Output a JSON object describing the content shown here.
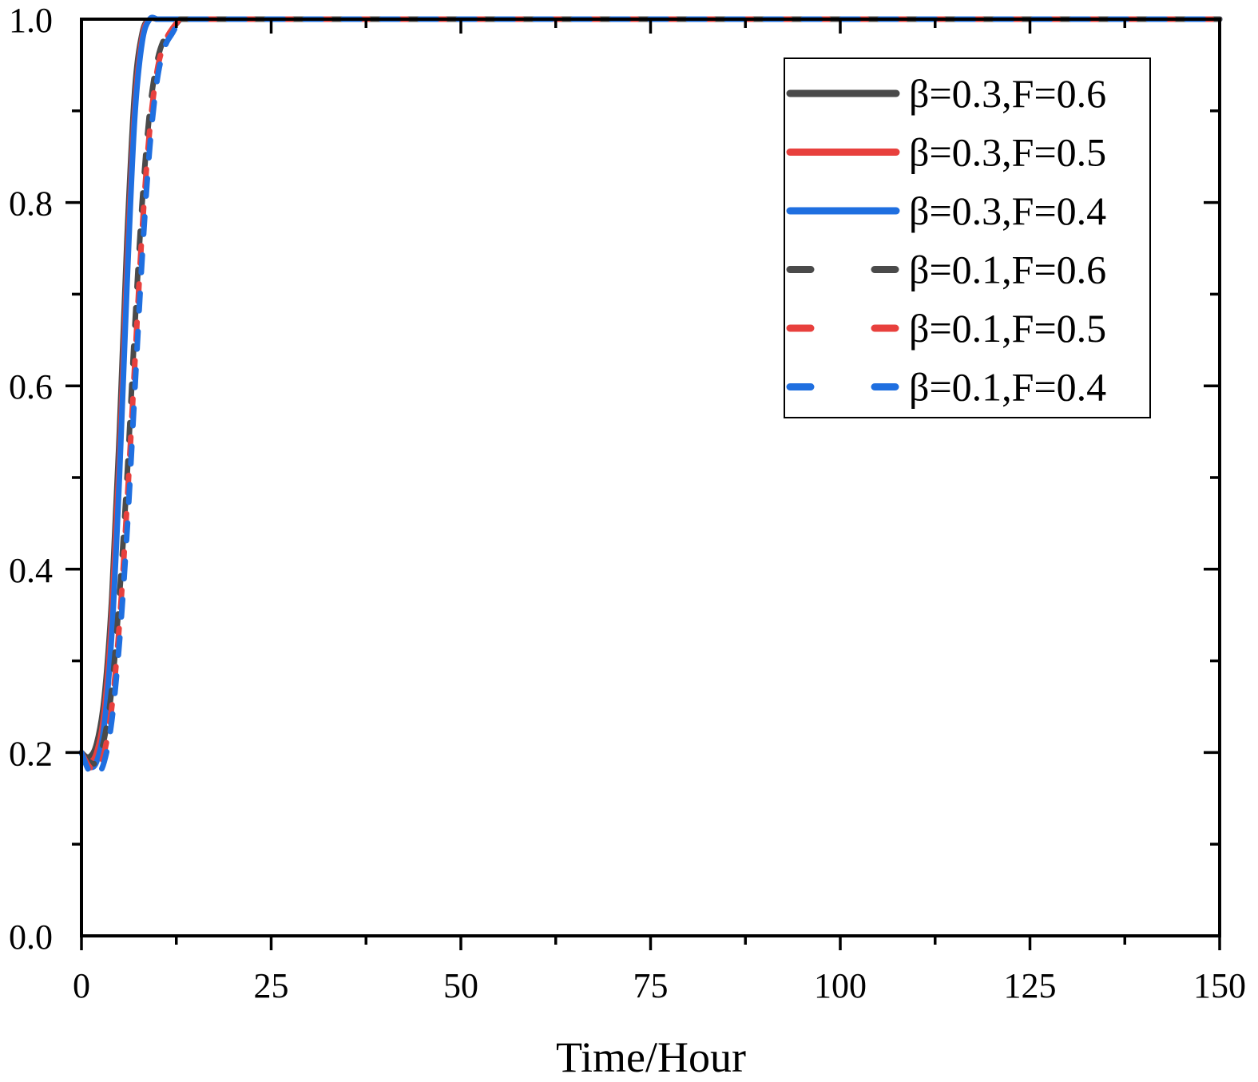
{
  "chart_data": {
    "type": "line",
    "title": "",
    "xlabel": "Time/Hour",
    "ylabel": "",
    "xlim": [
      0,
      150
    ],
    "ylim": [
      0,
      1.0
    ],
    "x_ticks": [
      "0",
      "25",
      "50",
      "75",
      "100",
      "125",
      "150"
    ],
    "y_ticks": [
      "0.0",
      "0.2",
      "0.4",
      "0.6",
      "0.8",
      "1.0"
    ],
    "legend_position": "top-right",
    "series": [
      {
        "name": "β=0.3,F=0.6",
        "color": "#4a4a4a",
        "dash": "solid",
        "x": [
          0,
          1,
          2,
          3,
          4,
          5,
          6,
          7,
          8,
          9,
          10,
          11,
          12,
          150
        ],
        "y": [
          0.2,
          0.195,
          0.21,
          0.26,
          0.37,
          0.55,
          0.76,
          0.92,
          0.985,
          1.0,
          1.0,
          1.0,
          1.0,
          1.0
        ]
      },
      {
        "name": "β=0.3,F=0.5",
        "color": "#e8403d",
        "dash": "solid",
        "x": [
          0,
          1,
          2,
          3,
          4,
          5,
          6,
          7,
          8,
          9,
          10,
          11,
          12,
          150
        ],
        "y": [
          0.2,
          0.19,
          0.2,
          0.245,
          0.35,
          0.52,
          0.73,
          0.9,
          0.98,
          1.0,
          1.0,
          1.0,
          1.0,
          1.0
        ]
      },
      {
        "name": "β=0.3,F=0.4",
        "color": "#1f6fe0",
        "dash": "solid",
        "x": [
          0,
          1,
          2,
          3,
          4,
          5,
          6,
          7,
          8,
          9,
          10,
          11,
          12,
          150
        ],
        "y": [
          0.2,
          0.185,
          0.19,
          0.23,
          0.33,
          0.5,
          0.71,
          0.89,
          0.975,
          1.0,
          1.0,
          1.0,
          1.0,
          1.0
        ]
      },
      {
        "name": "β=0.1,F=0.6",
        "color": "#4a4a4a",
        "dash": "dashed",
        "x": [
          0,
          1,
          2,
          3,
          4,
          5,
          6,
          7,
          8,
          9,
          10,
          11,
          12,
          13,
          150
        ],
        "y": [
          0.2,
          0.19,
          0.19,
          0.215,
          0.27,
          0.37,
          0.5,
          0.66,
          0.8,
          0.9,
          0.955,
          0.98,
          0.99,
          1.0,
          1.0
        ]
      },
      {
        "name": "β=0.1,F=0.5",
        "color": "#e8403d",
        "dash": "dashed",
        "x": [
          0,
          1,
          2,
          3,
          4,
          5,
          6,
          7,
          8,
          9,
          10,
          11,
          12,
          13,
          150
        ],
        "y": [
          0.2,
          0.185,
          0.18,
          0.2,
          0.25,
          0.34,
          0.47,
          0.62,
          0.77,
          0.88,
          0.945,
          0.975,
          0.99,
          1.0,
          1.0
        ]
      },
      {
        "name": "β=0.1,F=0.4",
        "color": "#1f6fe0",
        "dash": "dashed",
        "x": [
          0,
          1,
          2,
          3,
          4,
          5,
          6,
          7,
          8,
          9,
          10,
          11,
          12,
          13,
          150
        ],
        "y": [
          0.2,
          0.18,
          0.175,
          0.19,
          0.235,
          0.32,
          0.44,
          0.59,
          0.74,
          0.86,
          0.935,
          0.97,
          0.985,
          1.0,
          1.0
        ]
      }
    ]
  }
}
